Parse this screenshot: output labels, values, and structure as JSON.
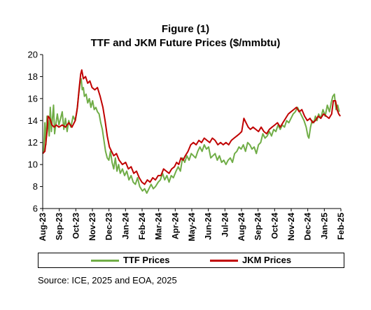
{
  "figure": {
    "title": "Figure (1)",
    "subtitle": "TTF and JKM Future Prices ($/mmbtu)",
    "source": "Source: ICE, 2025 and EOA, 2025"
  },
  "chart_data": {
    "type": "line",
    "title": "TTF and JKM Future Prices ($/mmbtu)",
    "xlabel": "",
    "ylabel": "",
    "ylim": [
      6,
      20
    ],
    "yticks": [
      6,
      8,
      10,
      12,
      14,
      16,
      18,
      20
    ],
    "xlim": [
      "2023-08-01",
      "2025-02-01"
    ],
    "xticks": [
      "Aug-23",
      "Sep-23",
      "Oct-23",
      "Nov-23",
      "Dec-23",
      "Jan-24",
      "Feb-24",
      "Mar-24",
      "Apr-24",
      "May-24",
      "Jun-24",
      "Jul-24",
      "Aug-24",
      "Sep-24",
      "Oct-24",
      "Nov-24",
      "Dec-24",
      "Jan-25",
      "Feb-25"
    ],
    "grid": false,
    "legend_position": "bottom",
    "series": [
      {
        "name": "TTF Prices",
        "color": "#70ad47",
        "points": [
          [
            "2023-08-01",
            11.0
          ],
          [
            "2023-08-03",
            11.2
          ],
          [
            "2023-08-05",
            13.8
          ],
          [
            "2023-08-07",
            11.8
          ],
          [
            "2023-08-09",
            14.4
          ],
          [
            "2023-08-11",
            14.0
          ],
          [
            "2023-08-13",
            12.6
          ],
          [
            "2023-08-15",
            15.2
          ],
          [
            "2023-08-17",
            13.0
          ],
          [
            "2023-08-19",
            14.2
          ],
          [
            "2023-08-21",
            15.4
          ],
          [
            "2023-08-23",
            12.8
          ],
          [
            "2023-08-25",
            13.6
          ],
          [
            "2023-08-28",
            14.6
          ],
          [
            "2023-08-31",
            13.6
          ],
          [
            "2023-09-03",
            14.2
          ],
          [
            "2023-09-06",
            14.8
          ],
          [
            "2023-09-09",
            13.2
          ],
          [
            "2023-09-12",
            14.2
          ],
          [
            "2023-09-15",
            13.0
          ],
          [
            "2023-09-18",
            14.0
          ],
          [
            "2023-09-22",
            13.4
          ],
          [
            "2023-09-26",
            14.4
          ],
          [
            "2023-09-30",
            14.0
          ],
          [
            "2023-10-03",
            14.8
          ],
          [
            "2023-10-06",
            16.2
          ],
          [
            "2023-10-09",
            17.4
          ],
          [
            "2023-10-11",
            17.8
          ],
          [
            "2023-10-13",
            16.8
          ],
          [
            "2023-10-15",
            17.0
          ],
          [
            "2023-10-17",
            16.2
          ],
          [
            "2023-10-20",
            16.4
          ],
          [
            "2023-10-23",
            15.6
          ],
          [
            "2023-10-26",
            16.0
          ],
          [
            "2023-10-29",
            15.2
          ],
          [
            "2023-11-01",
            15.8
          ],
          [
            "2023-11-04",
            15.0
          ],
          [
            "2023-11-07",
            15.2
          ],
          [
            "2023-11-10",
            14.8
          ],
          [
            "2023-11-13",
            14.6
          ],
          [
            "2023-11-16",
            13.8
          ],
          [
            "2023-11-19",
            13.2
          ],
          [
            "2023-11-22",
            12.2
          ],
          [
            "2023-11-25",
            11.2
          ],
          [
            "2023-11-28",
            10.6
          ],
          [
            "2023-12-01",
            10.4
          ],
          [
            "2023-12-04",
            11.2
          ],
          [
            "2023-12-07",
            10.2
          ],
          [
            "2023-12-10",
            9.6
          ],
          [
            "2023-12-13",
            10.6
          ],
          [
            "2023-12-16",
            9.4
          ],
          [
            "2023-12-19",
            10.0
          ],
          [
            "2023-12-22",
            9.2
          ],
          [
            "2023-12-26",
            9.6
          ],
          [
            "2023-12-30",
            9.0
          ],
          [
            "2024-01-03",
            9.4
          ],
          [
            "2024-01-07",
            8.6
          ],
          [
            "2024-01-11",
            9.0
          ],
          [
            "2024-01-15",
            8.4
          ],
          [
            "2024-01-19",
            8.2
          ],
          [
            "2024-01-23",
            8.8
          ],
          [
            "2024-01-27",
            8.0
          ],
          [
            "2024-02-01",
            7.6
          ],
          [
            "2024-02-05",
            7.8
          ],
          [
            "2024-02-09",
            7.4
          ],
          [
            "2024-02-13",
            7.8
          ],
          [
            "2024-02-17",
            8.2
          ],
          [
            "2024-02-21",
            7.8
          ],
          [
            "2024-02-25",
            8.0
          ],
          [
            "2024-03-01",
            8.4
          ],
          [
            "2024-03-05",
            8.6
          ],
          [
            "2024-03-09",
            9.2
          ],
          [
            "2024-03-13",
            8.6
          ],
          [
            "2024-03-17",
            9.0
          ],
          [
            "2024-03-21",
            8.4
          ],
          [
            "2024-03-25",
            9.0
          ],
          [
            "2024-03-29",
            8.8
          ],
          [
            "2024-04-03",
            9.4
          ],
          [
            "2024-04-07",
            9.8
          ],
          [
            "2024-04-11",
            9.4
          ],
          [
            "2024-04-15",
            10.6
          ],
          [
            "2024-04-19",
            10.2
          ],
          [
            "2024-04-23",
            10.8
          ],
          [
            "2024-04-27",
            10.4
          ],
          [
            "2024-05-01",
            11.0
          ],
          [
            "2024-05-05",
            10.8
          ],
          [
            "2024-05-09",
            10.6
          ],
          [
            "2024-05-13",
            11.2
          ],
          [
            "2024-05-17",
            11.6
          ],
          [
            "2024-05-21",
            11.2
          ],
          [
            "2024-05-25",
            11.8
          ],
          [
            "2024-05-29",
            11.4
          ],
          [
            "2024-06-02",
            11.6
          ],
          [
            "2024-06-06",
            10.6
          ],
          [
            "2024-06-10",
            10.8
          ],
          [
            "2024-06-14",
            11.0
          ],
          [
            "2024-06-18",
            10.4
          ],
          [
            "2024-06-22",
            10.8
          ],
          [
            "2024-06-26",
            10.2
          ],
          [
            "2024-06-30",
            10.4
          ],
          [
            "2024-07-04",
            10.0
          ],
          [
            "2024-07-08",
            10.4
          ],
          [
            "2024-07-12",
            10.6
          ],
          [
            "2024-07-16",
            10.2
          ],
          [
            "2024-07-20",
            11.0
          ],
          [
            "2024-07-24",
            11.2
          ],
          [
            "2024-07-28",
            11.6
          ],
          [
            "2024-08-01",
            11.4
          ],
          [
            "2024-08-05",
            11.8
          ],
          [
            "2024-08-09",
            11.2
          ],
          [
            "2024-08-13",
            12.0
          ],
          [
            "2024-08-17",
            11.8
          ],
          [
            "2024-08-21",
            11.4
          ],
          [
            "2024-08-25",
            11.6
          ],
          [
            "2024-08-29",
            11.0
          ],
          [
            "2024-09-02",
            11.8
          ],
          [
            "2024-09-06",
            12.0
          ],
          [
            "2024-09-10",
            12.8
          ],
          [
            "2024-09-14",
            12.4
          ],
          [
            "2024-09-18",
            12.6
          ],
          [
            "2024-09-22",
            13.0
          ],
          [
            "2024-09-26",
            12.6
          ],
          [
            "2024-09-30",
            13.2
          ],
          [
            "2024-10-04",
            13.0
          ],
          [
            "2024-10-08",
            13.6
          ],
          [
            "2024-10-12",
            13.2
          ],
          [
            "2024-10-16",
            13.6
          ],
          [
            "2024-10-20",
            13.4
          ],
          [
            "2024-10-24",
            14.0
          ],
          [
            "2024-10-28",
            13.8
          ],
          [
            "2024-11-01",
            14.2
          ],
          [
            "2024-11-05",
            14.6
          ],
          [
            "2024-11-09",
            14.8
          ],
          [
            "2024-11-13",
            15.2
          ],
          [
            "2024-11-17",
            14.8
          ],
          [
            "2024-11-21",
            14.4
          ],
          [
            "2024-11-25",
            14.0
          ],
          [
            "2024-11-29",
            13.4
          ],
          [
            "2024-12-02",
            12.6
          ],
          [
            "2024-12-04",
            12.4
          ],
          [
            "2024-12-07",
            13.4
          ],
          [
            "2024-12-10",
            14.0
          ],
          [
            "2024-12-13",
            13.8
          ],
          [
            "2024-12-16",
            14.4
          ],
          [
            "2024-12-19",
            14.0
          ],
          [
            "2024-12-22",
            14.6
          ],
          [
            "2024-12-26",
            14.2
          ],
          [
            "2024-12-30",
            15.0
          ],
          [
            "2025-01-03",
            14.4
          ],
          [
            "2025-01-07",
            15.4
          ],
          [
            "2025-01-11",
            14.8
          ],
          [
            "2025-01-14",
            15.6
          ],
          [
            "2025-01-17",
            16.2
          ],
          [
            "2025-01-20",
            16.4
          ],
          [
            "2025-01-23",
            15.0
          ],
          [
            "2025-01-26",
            15.4
          ],
          [
            "2025-01-29",
            14.8
          ]
        ]
      },
      {
        "name": "JKM Prices",
        "color": "#c00000",
        "points": [
          [
            "2023-08-01",
            11.0
          ],
          [
            "2023-08-05",
            11.2
          ],
          [
            "2023-08-09",
            13.0
          ],
          [
            "2023-08-11",
            14.4
          ],
          [
            "2023-08-14",
            14.2
          ],
          [
            "2023-08-18",
            13.6
          ],
          [
            "2023-08-22",
            13.4
          ],
          [
            "2023-08-26",
            13.6
          ],
          [
            "2023-08-31",
            13.4
          ],
          [
            "2023-09-06",
            13.6
          ],
          [
            "2023-09-12",
            13.4
          ],
          [
            "2023-09-18",
            13.8
          ],
          [
            "2023-09-24",
            13.4
          ],
          [
            "2023-09-30",
            14.0
          ],
          [
            "2023-10-04",
            15.2
          ],
          [
            "2023-10-07",
            16.8
          ],
          [
            "2023-10-10",
            18.2
          ],
          [
            "2023-10-12",
            18.6
          ],
          [
            "2023-10-15",
            17.8
          ],
          [
            "2023-10-19",
            18.0
          ],
          [
            "2023-10-23",
            17.4
          ],
          [
            "2023-10-27",
            17.6
          ],
          [
            "2023-10-31",
            17.0
          ],
          [
            "2023-11-05",
            16.8
          ],
          [
            "2023-11-10",
            17.0
          ],
          [
            "2023-11-15",
            16.2
          ],
          [
            "2023-11-20",
            15.2
          ],
          [
            "2023-11-24",
            14.0
          ],
          [
            "2023-11-28",
            12.6
          ],
          [
            "2023-12-02",
            11.6
          ],
          [
            "2023-12-06",
            11.2
          ],
          [
            "2023-12-10",
            10.8
          ],
          [
            "2023-12-15",
            11.0
          ],
          [
            "2023-12-20",
            10.4
          ],
          [
            "2023-12-26",
            10.0
          ],
          [
            "2024-01-01",
            10.2
          ],
          [
            "2024-01-06",
            9.6
          ],
          [
            "2024-01-11",
            9.8
          ],
          [
            "2024-01-16",
            9.2
          ],
          [
            "2024-01-21",
            9.4
          ],
          [
            "2024-01-26",
            8.8
          ],
          [
            "2024-01-31",
            8.4
          ],
          [
            "2024-02-05",
            8.2
          ],
          [
            "2024-02-10",
            8.6
          ],
          [
            "2024-02-15",
            8.4
          ],
          [
            "2024-02-20",
            8.8
          ],
          [
            "2024-02-25",
            8.6
          ],
          [
            "2024-03-01",
            9.0
          ],
          [
            "2024-03-06",
            9.0
          ],
          [
            "2024-03-11",
            9.6
          ],
          [
            "2024-03-16",
            9.4
          ],
          [
            "2024-03-21",
            9.2
          ],
          [
            "2024-03-26",
            9.6
          ],
          [
            "2024-03-31",
            9.8
          ],
          [
            "2024-04-04",
            10.2
          ],
          [
            "2024-04-08",
            10.0
          ],
          [
            "2024-04-12",
            10.6
          ],
          [
            "2024-04-16",
            10.4
          ],
          [
            "2024-04-20",
            10.8
          ],
          [
            "2024-04-25",
            11.2
          ],
          [
            "2024-04-30",
            11.8
          ],
          [
            "2024-05-05",
            12.0
          ],
          [
            "2024-05-10",
            11.8
          ],
          [
            "2024-05-15",
            12.2
          ],
          [
            "2024-05-20",
            12.0
          ],
          [
            "2024-05-25",
            12.4
          ],
          [
            "2024-05-30",
            12.2
          ],
          [
            "2024-06-04",
            12.0
          ],
          [
            "2024-06-09",
            12.4
          ],
          [
            "2024-06-14",
            12.2
          ],
          [
            "2024-06-19",
            11.8
          ],
          [
            "2024-06-24",
            12.0
          ],
          [
            "2024-06-29",
            11.8
          ],
          [
            "2024-07-04",
            12.0
          ],
          [
            "2024-07-09",
            11.8
          ],
          [
            "2024-07-14",
            12.2
          ],
          [
            "2024-07-19",
            12.4
          ],
          [
            "2024-07-24",
            12.6
          ],
          [
            "2024-07-29",
            12.8
          ],
          [
            "2024-08-02",
            13.0
          ],
          [
            "2024-08-06",
            14.2
          ],
          [
            "2024-08-10",
            13.8
          ],
          [
            "2024-08-14",
            13.4
          ],
          [
            "2024-08-18",
            13.2
          ],
          [
            "2024-08-23",
            13.4
          ],
          [
            "2024-08-28",
            13.2
          ],
          [
            "2024-09-02",
            13.0
          ],
          [
            "2024-09-07",
            13.4
          ],
          [
            "2024-09-12",
            13.0
          ],
          [
            "2024-09-17",
            12.8
          ],
          [
            "2024-09-22",
            13.2
          ],
          [
            "2024-09-27",
            13.4
          ],
          [
            "2024-10-02",
            13.6
          ],
          [
            "2024-10-07",
            13.8
          ],
          [
            "2024-10-12",
            13.4
          ],
          [
            "2024-10-17",
            13.8
          ],
          [
            "2024-10-22",
            14.2
          ],
          [
            "2024-10-27",
            14.6
          ],
          [
            "2024-11-01",
            14.8
          ],
          [
            "2024-11-06",
            15.0
          ],
          [
            "2024-11-11",
            15.2
          ],
          [
            "2024-11-16",
            14.8
          ],
          [
            "2024-11-21",
            15.0
          ],
          [
            "2024-11-26",
            14.4
          ],
          [
            "2024-12-01",
            14.0
          ],
          [
            "2024-12-06",
            14.2
          ],
          [
            "2024-12-11",
            13.8
          ],
          [
            "2024-12-16",
            14.0
          ],
          [
            "2024-12-21",
            14.4
          ],
          [
            "2024-12-26",
            14.2
          ],
          [
            "2024-12-31",
            14.6
          ],
          [
            "2025-01-05",
            14.4
          ],
          [
            "2025-01-10",
            14.2
          ],
          [
            "2025-01-15",
            14.6
          ],
          [
            "2025-01-18",
            15.8
          ],
          [
            "2025-01-22",
            15.8
          ],
          [
            "2025-01-25",
            15.0
          ],
          [
            "2025-01-28",
            14.6
          ],
          [
            "2025-01-31",
            14.4
          ]
        ]
      }
    ]
  }
}
